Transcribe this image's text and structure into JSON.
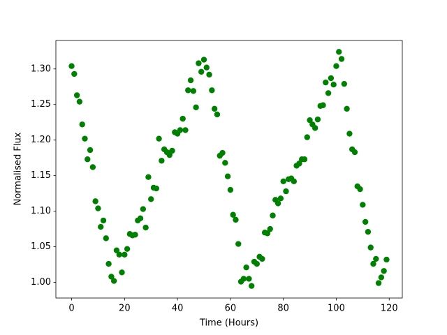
{
  "chart_data": {
    "type": "scatter",
    "xlabel": "Time (Hours)",
    "ylabel": "Normalised Flux",
    "color": "#008000",
    "x": [
      0,
      1,
      2,
      3,
      4,
      5,
      6,
      7,
      8,
      9,
      10,
      11,
      12,
      13,
      14,
      15,
      16,
      17,
      18,
      19,
      20,
      21,
      22,
      23,
      24,
      25,
      26,
      27,
      28,
      29,
      30,
      31,
      32,
      33,
      34,
      35,
      36,
      37,
      38,
      39,
      40,
      41,
      42,
      43,
      44,
      45,
      46,
      47,
      48,
      49,
      50,
      51,
      52,
      53,
      54,
      55,
      56,
      57,
      58,
      59,
      60,
      61,
      62,
      63,
      64,
      65,
      66,
      67,
      68,
      69,
      70,
      71,
      72,
      73,
      74,
      75,
      76,
      77,
      78,
      79,
      80,
      81,
      82,
      83,
      84,
      85,
      86,
      87,
      88,
      89,
      90,
      91,
      92,
      93,
      94,
      95,
      96,
      97,
      98,
      99,
      100,
      101,
      102,
      103,
      104,
      105,
      106,
      107,
      108,
      109,
      110,
      111,
      112,
      113,
      114,
      115,
      116,
      117,
      118,
      119
    ],
    "values": [
      1.304,
      1.293,
      1.263,
      1.254,
      1.222,
      1.202,
      1.173,
      1.186,
      1.162,
      1.114,
      1.104,
      1.078,
      1.087,
      1.062,
      1.026,
      1.008,
      1.002,
      1.045,
      1.039,
      1.014,
      1.039,
      1.047,
      1.068,
      1.066,
      1.067,
      1.087,
      1.09,
      1.103,
      1.077,
      1.148,
      1.117,
      1.133,
      1.132,
      1.202,
      1.171,
      1.187,
      1.183,
      1.179,
      1.185,
      1.211,
      1.209,
      1.214,
      1.23,
      1.214,
      1.27,
      1.284,
      1.269,
      1.246,
      1.308,
      1.296,
      1.313,
      1.302,
      1.292,
      1.27,
      1.244,
      1.236,
      1.178,
      1.182,
      1.168,
      1.149,
      1.13,
      1.095,
      1.088,
      1.054,
      1.001,
      1.005,
      1.021,
      1.005,
      0.995,
      1.029,
      1.026,
      1.036,
      1.033,
      1.07,
      1.069,
      1.075,
      1.094,
      1.116,
      1.111,
      1.118,
      1.142,
      1.128,
      1.145,
      1.146,
      1.142,
      1.164,
      1.167,
      1.173,
      1.173,
      1.204,
      1.228,
      1.222,
      1.217,
      1.229,
      1.248,
      1.249,
      1.281,
      1.266,
      1.287,
      1.278,
      1.304,
      1.324,
      1.314,
      1.279,
      1.244,
      1.209,
      1.187,
      1.183,
      1.135,
      1.131,
      1.109,
      1.085,
      1.071,
      1.049,
      1.026,
      1.033,
      0.999,
      1.007,
      1.016,
      1.032
    ],
    "xlim": [
      -5.95,
      124.95
    ],
    "xticks": [
      0,
      20,
      40,
      60,
      80,
      100,
      120
    ],
    "ylim": [
      0.978,
      1.34
    ],
    "yticks": [
      {
        "value": 1.0,
        "label": "1.00"
      },
      {
        "value": 1.05,
        "label": "1.05"
      },
      {
        "value": 1.1,
        "label": "1.10"
      },
      {
        "value": 1.15,
        "label": "1.15"
      },
      {
        "value": 1.2,
        "label": "1.20"
      },
      {
        "value": 1.25,
        "label": "1.25"
      },
      {
        "value": 1.3,
        "label": "1.30"
      }
    ],
    "grid": false
  }
}
